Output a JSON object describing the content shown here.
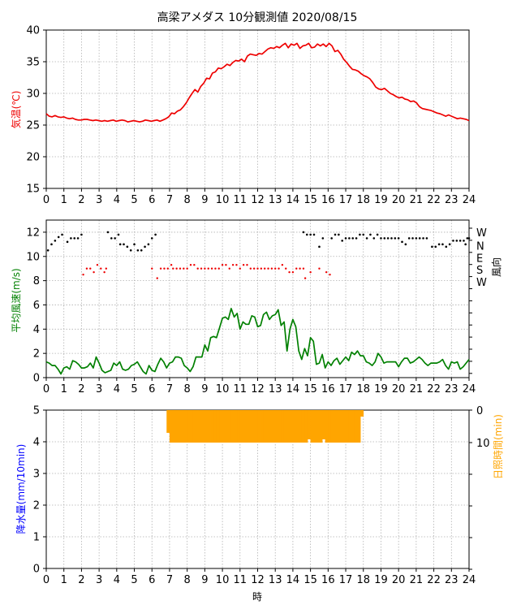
{
  "title": "高梁アメダス 10分観測値  2020/08/15",
  "colors": {
    "temp": "#ee0000",
    "wind": "#008000",
    "dir_ok": "#000000",
    "dir_red": "#ee0000",
    "precip": "#0000ff",
    "sun": "#ffa500"
  },
  "chart_data": [
    {
      "id": "temperature",
      "type": "line",
      "ylabel": "気温(℃)",
      "xlim": [
        0,
        24
      ],
      "ylim": [
        15,
        40
      ],
      "yticks": [
        15,
        20,
        25,
        30,
        35,
        40
      ],
      "xticks": [
        0,
        1,
        2,
        3,
        4,
        5,
        6,
        7,
        8,
        9,
        10,
        11,
        12,
        13,
        14,
        15,
        16,
        17,
        18,
        19,
        20,
        21,
        22,
        23,
        24
      ],
      "grid": true,
      "series": [
        {
          "values": [
            26.8,
            26.4,
            26.3,
            26.5,
            26.3,
            26.2,
            26.3,
            26.1,
            26.0,
            26.1,
            25.9,
            25.8,
            25.8,
            25.9,
            25.9,
            25.8,
            25.7,
            25.8,
            25.7,
            25.6,
            25.7,
            25.6,
            25.7,
            25.8,
            25.6,
            25.7,
            25.8,
            25.7,
            25.5,
            25.6,
            25.7,
            25.6,
            25.5,
            25.6,
            25.8,
            25.7,
            25.6,
            25.7,
            25.8,
            25.6,
            25.8,
            26.0,
            26.3,
            26.9,
            26.8,
            27.2,
            27.4,
            27.9,
            28.5,
            29.3,
            30.0,
            30.6,
            30.2,
            31.1,
            31.6,
            32.4,
            32.3,
            33.2,
            33.4,
            34.0,
            33.9,
            34.2,
            34.6,
            34.4,
            34.9,
            35.2,
            35.1,
            35.4,
            35.0,
            35.9,
            36.2,
            36.1,
            36.0,
            36.3,
            36.2,
            36.6,
            37.0,
            37.2,
            37.1,
            37.4,
            37.2,
            37.6,
            37.9,
            37.2,
            37.8,
            37.6,
            37.9,
            37.1,
            37.5,
            37.6,
            37.9,
            37.2,
            37.3,
            37.8,
            37.5,
            37.8,
            37.4,
            37.9,
            37.5,
            36.6,
            36.8,
            36.2,
            35.4,
            34.9,
            34.3,
            33.8,
            33.7,
            33.5,
            33.1,
            32.8,
            32.6,
            32.3,
            31.7,
            31.0,
            30.7,
            30.6,
            30.8,
            30.4,
            30.0,
            29.8,
            29.5,
            29.3,
            29.4,
            29.1,
            29.0,
            28.7,
            28.8,
            28.5,
            27.9,
            27.6,
            27.5,
            27.4,
            27.3,
            27.1,
            26.9,
            26.8,
            26.6,
            26.4,
            26.6,
            26.4,
            26.2,
            26.0,
            26.1,
            26.0,
            25.9,
            25.7
          ]
        }
      ]
    },
    {
      "id": "wind",
      "type": "line",
      "ylabel": "平均風速(m/s)",
      "y2label": "風向",
      "xlim": [
        0,
        24
      ],
      "ylim": [
        0,
        13
      ],
      "yticks": [
        0,
        2,
        4,
        6,
        8,
        10,
        12
      ],
      "y2ticks": [
        "W",
        "N",
        "E",
        "S",
        "W"
      ],
      "xticks": [
        0,
        1,
        2,
        3,
        4,
        5,
        6,
        7,
        8,
        9,
        10,
        11,
        12,
        13,
        14,
        15,
        16,
        17,
        18,
        19,
        20,
        21,
        22,
        23,
        24
      ],
      "grid": true,
      "speed": [
        1.3,
        1.2,
        1.0,
        1.0,
        0.7,
        0.3,
        0.8,
        0.9,
        0.7,
        1.4,
        1.3,
        1.1,
        0.8,
        0.8,
        0.9,
        1.2,
        0.8,
        1.7,
        1.2,
        0.6,
        0.4,
        0.5,
        0.6,
        1.2,
        1.0,
        1.3,
        0.7,
        0.6,
        0.7,
        1.0,
        1.1,
        1.3,
        0.9,
        0.5,
        0.3,
        1.0,
        0.6,
        0.5,
        1.1,
        1.6,
        1.3,
        0.8,
        1.2,
        1.3,
        1.7,
        1.7,
        1.6,
        1.0,
        0.8,
        0.5,
        0.9,
        1.7,
        1.7,
        1.7,
        2.7,
        2.2,
        3.3,
        3.4,
        3.3,
        4.1,
        4.9,
        5.0,
        4.8,
        5.7,
        5.0,
        5.3,
        4.0,
        4.6,
        4.4,
        4.4,
        5.1,
        5.0,
        4.2,
        4.3,
        5.2,
        5.4,
        4.8,
        5.1,
        5.2,
        5.6,
        4.3,
        4.6,
        2.2,
        4.0,
        4.8,
        4.2,
        2.2,
        1.5,
        2.4,
        1.8,
        3.3,
        3.0,
        1.1,
        1.2,
        1.9,
        0.8,
        1.3,
        1.0,
        1.4,
        1.6,
        1.1,
        1.4,
        1.7,
        1.4,
        2.1,
        1.9,
        2.2,
        1.8,
        1.8,
        1.3,
        1.2,
        1.0,
        1.3,
        2.0,
        1.7,
        1.2,
        1.3,
        1.3,
        1.3,
        1.3,
        0.9,
        1.3,
        1.6,
        1.6,
        1.2,
        1.3,
        1.5,
        1.7,
        1.5,
        1.2,
        1.0,
        1.2,
        1.2,
        1.2,
        1.3,
        1.5,
        1.0,
        0.7,
        1.3,
        1.2,
        1.3,
        0.7,
        0.9,
        1.2,
        1.5
      ],
      "direction_black": [
        [
          0.1,
          10.5
        ],
        [
          0.3,
          11.0
        ],
        [
          0.5,
          11.3
        ],
        [
          0.7,
          11.6
        ],
        [
          0.9,
          11.8
        ],
        [
          1.2,
          11.2
        ],
        [
          1.4,
          11.5
        ],
        [
          1.6,
          11.5
        ],
        [
          1.8,
          11.5
        ],
        [
          2.0,
          11.8
        ],
        [
          3.5,
          12.0
        ],
        [
          3.7,
          11.5
        ],
        [
          3.9,
          11.5
        ],
        [
          4.1,
          11.8
        ],
        [
          4.2,
          11.0
        ],
        [
          4.4,
          11.0
        ],
        [
          4.6,
          10.8
        ],
        [
          4.8,
          10.5
        ],
        [
          5.0,
          11.0
        ],
        [
          5.2,
          10.5
        ],
        [
          5.4,
          10.5
        ],
        [
          5.6,
          10.8
        ],
        [
          5.8,
          11.0
        ],
        [
          6.0,
          11.5
        ],
        [
          6.2,
          11.8
        ],
        [
          14.6,
          12.0
        ],
        [
          14.8,
          11.8
        ],
        [
          15.0,
          11.8
        ],
        [
          15.2,
          11.8
        ],
        [
          15.5,
          10.8
        ],
        [
          15.7,
          11.5
        ],
        [
          16.2,
          11.5
        ],
        [
          16.4,
          11.8
        ],
        [
          16.6,
          11.8
        ],
        [
          16.8,
          11.3
        ],
        [
          17.0,
          11.5
        ],
        [
          17.2,
          11.5
        ],
        [
          17.4,
          11.5
        ],
        [
          17.6,
          11.5
        ],
        [
          17.8,
          11.8
        ],
        [
          18.0,
          11.8
        ],
        [
          18.2,
          11.5
        ],
        [
          18.4,
          11.8
        ],
        [
          18.6,
          11.5
        ],
        [
          18.8,
          11.8
        ],
        [
          19.0,
          11.5
        ],
        [
          19.2,
          11.5
        ],
        [
          19.4,
          11.5
        ],
        [
          19.6,
          11.5
        ],
        [
          19.8,
          11.5
        ],
        [
          20.0,
          11.5
        ],
        [
          20.2,
          11.2
        ],
        [
          20.4,
          11.0
        ],
        [
          20.6,
          11.5
        ],
        [
          20.8,
          11.5
        ],
        [
          21.0,
          11.5
        ],
        [
          21.2,
          11.5
        ],
        [
          21.4,
          11.5
        ],
        [
          21.6,
          11.5
        ],
        [
          21.9,
          10.8
        ],
        [
          22.1,
          10.8
        ],
        [
          22.3,
          11.0
        ],
        [
          22.5,
          11.0
        ],
        [
          22.7,
          10.8
        ],
        [
          22.9,
          11.0
        ],
        [
          23.1,
          11.3
        ],
        [
          23.3,
          11.3
        ],
        [
          23.5,
          11.3
        ],
        [
          23.7,
          11.3
        ],
        [
          23.9,
          11.5
        ],
        [
          24.0,
          11.5
        ],
        [
          23.8,
          11.0
        ]
      ],
      "direction_red": [
        [
          2.1,
          8.5
        ],
        [
          2.3,
          9.0
        ],
        [
          2.5,
          9.0
        ],
        [
          2.7,
          8.7
        ],
        [
          2.9,
          9.3
        ],
        [
          3.1,
          9.0
        ],
        [
          3.3,
          8.7
        ],
        [
          3.4,
          9.0
        ],
        [
          6.0,
          9.0
        ],
        [
          6.3,
          8.2
        ],
        [
          6.5,
          9.0
        ],
        [
          6.7,
          9.0
        ],
        [
          6.9,
          9.0
        ],
        [
          7.1,
          9.3
        ],
        [
          7.2,
          9.0
        ],
        [
          7.4,
          9.0
        ],
        [
          7.6,
          9.0
        ],
        [
          7.8,
          9.0
        ],
        [
          8.0,
          9.0
        ],
        [
          8.2,
          9.3
        ],
        [
          8.4,
          9.3
        ],
        [
          8.6,
          9.0
        ],
        [
          8.8,
          9.0
        ],
        [
          9.0,
          9.0
        ],
        [
          9.2,
          9.0
        ],
        [
          9.4,
          9.0
        ],
        [
          9.6,
          9.0
        ],
        [
          9.8,
          9.0
        ],
        [
          10.0,
          9.3
        ],
        [
          10.2,
          9.3
        ],
        [
          10.4,
          9.0
        ],
        [
          10.6,
          9.3
        ],
        [
          10.8,
          9.3
        ],
        [
          11.0,
          9.0
        ],
        [
          11.2,
          9.3
        ],
        [
          11.4,
          9.3
        ],
        [
          11.6,
          9.0
        ],
        [
          11.8,
          9.0
        ],
        [
          12.0,
          9.0
        ],
        [
          12.2,
          9.0
        ],
        [
          12.4,
          9.0
        ],
        [
          12.6,
          9.0
        ],
        [
          12.8,
          9.0
        ],
        [
          13.0,
          9.0
        ],
        [
          13.2,
          9.0
        ],
        [
          13.4,
          9.3
        ],
        [
          13.6,
          9.0
        ],
        [
          13.8,
          8.7
        ],
        [
          14.0,
          8.7
        ],
        [
          14.2,
          9.0
        ],
        [
          14.4,
          9.0
        ],
        [
          14.6,
          9.0
        ],
        [
          14.7,
          8.2
        ],
        [
          15.0,
          8.7
        ],
        [
          15.5,
          9.0
        ],
        [
          15.9,
          8.7
        ],
        [
          16.1,
          8.5
        ]
      ]
    },
    {
      "id": "precip_sun",
      "type": "bar",
      "ylabel": "降水量(mm/10min)",
      "y2label": "日照時間(min)",
      "xlabel": "時",
      "xlim": [
        0,
        24
      ],
      "ylim": [
        0,
        5
      ],
      "yticks": [
        0,
        1,
        2,
        3,
        4,
        5
      ],
      "y2ticks": [
        0,
        10
      ],
      "xticks": [
        0,
        1,
        2,
        3,
        4,
        5,
        6,
        7,
        8,
        9,
        10,
        11,
        12,
        13,
        14,
        15,
        16,
        17,
        18,
        19,
        20,
        21,
        22,
        23,
        24
      ],
      "grid": true,
      "sunshine_start": 6.83,
      "sunshine_minutes": [
        7,
        10,
        10,
        10,
        10,
        10,
        10,
        10,
        10,
        10,
        10,
        10,
        10,
        10,
        10,
        10,
        10,
        10,
        10,
        10,
        10,
        10,
        10,
        10,
        10,
        10,
        10,
        10,
        10,
        10,
        10,
        10,
        10,
        10,
        10,
        10,
        10,
        10,
        10,
        10,
        10,
        10,
        10,
        10,
        10,
        10,
        10,
        10,
        9,
        10,
        10,
        10,
        10,
        9,
        10,
        10,
        10,
        10,
        10,
        10,
        10,
        10,
        10,
        10,
        10,
        10,
        2
      ]
    }
  ]
}
